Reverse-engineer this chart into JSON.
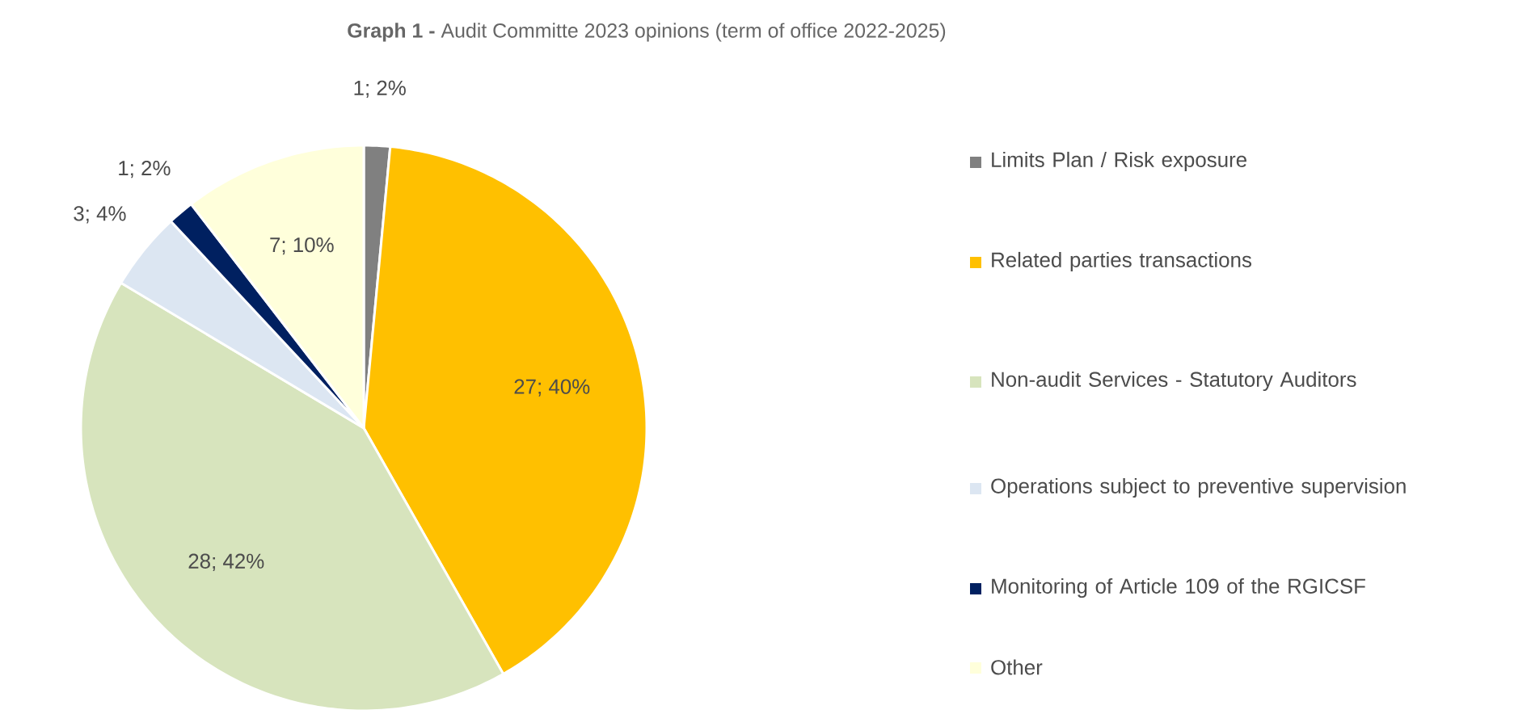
{
  "chart_data": {
    "type": "pie",
    "title": "**Graph 1 -** Audit Committe 2023 opinions (term of office 2022-2025)",
    "categories": [
      "Limits Plan / Risk exposure",
      "Related parties transactions",
      "Non-audit Services - Statutory Auditors",
      "Operations subject to preventive supervision",
      "Monitoring of Article 109 of the RGICSF",
      "Other"
    ],
    "values": [
      1,
      27,
      28,
      3,
      1,
      7
    ],
    "value_labels": [
      "1; 2%",
      "27; 40%",
      "28; 42%",
      "3; 4%",
      "1; 2%",
      "7; 10%"
    ],
    "colors": [
      "#808080",
      "#ffc000",
      "#d7e4bd",
      "#dce6f2",
      "#002060",
      "#ffffdb"
    ],
    "legend": "right"
  }
}
